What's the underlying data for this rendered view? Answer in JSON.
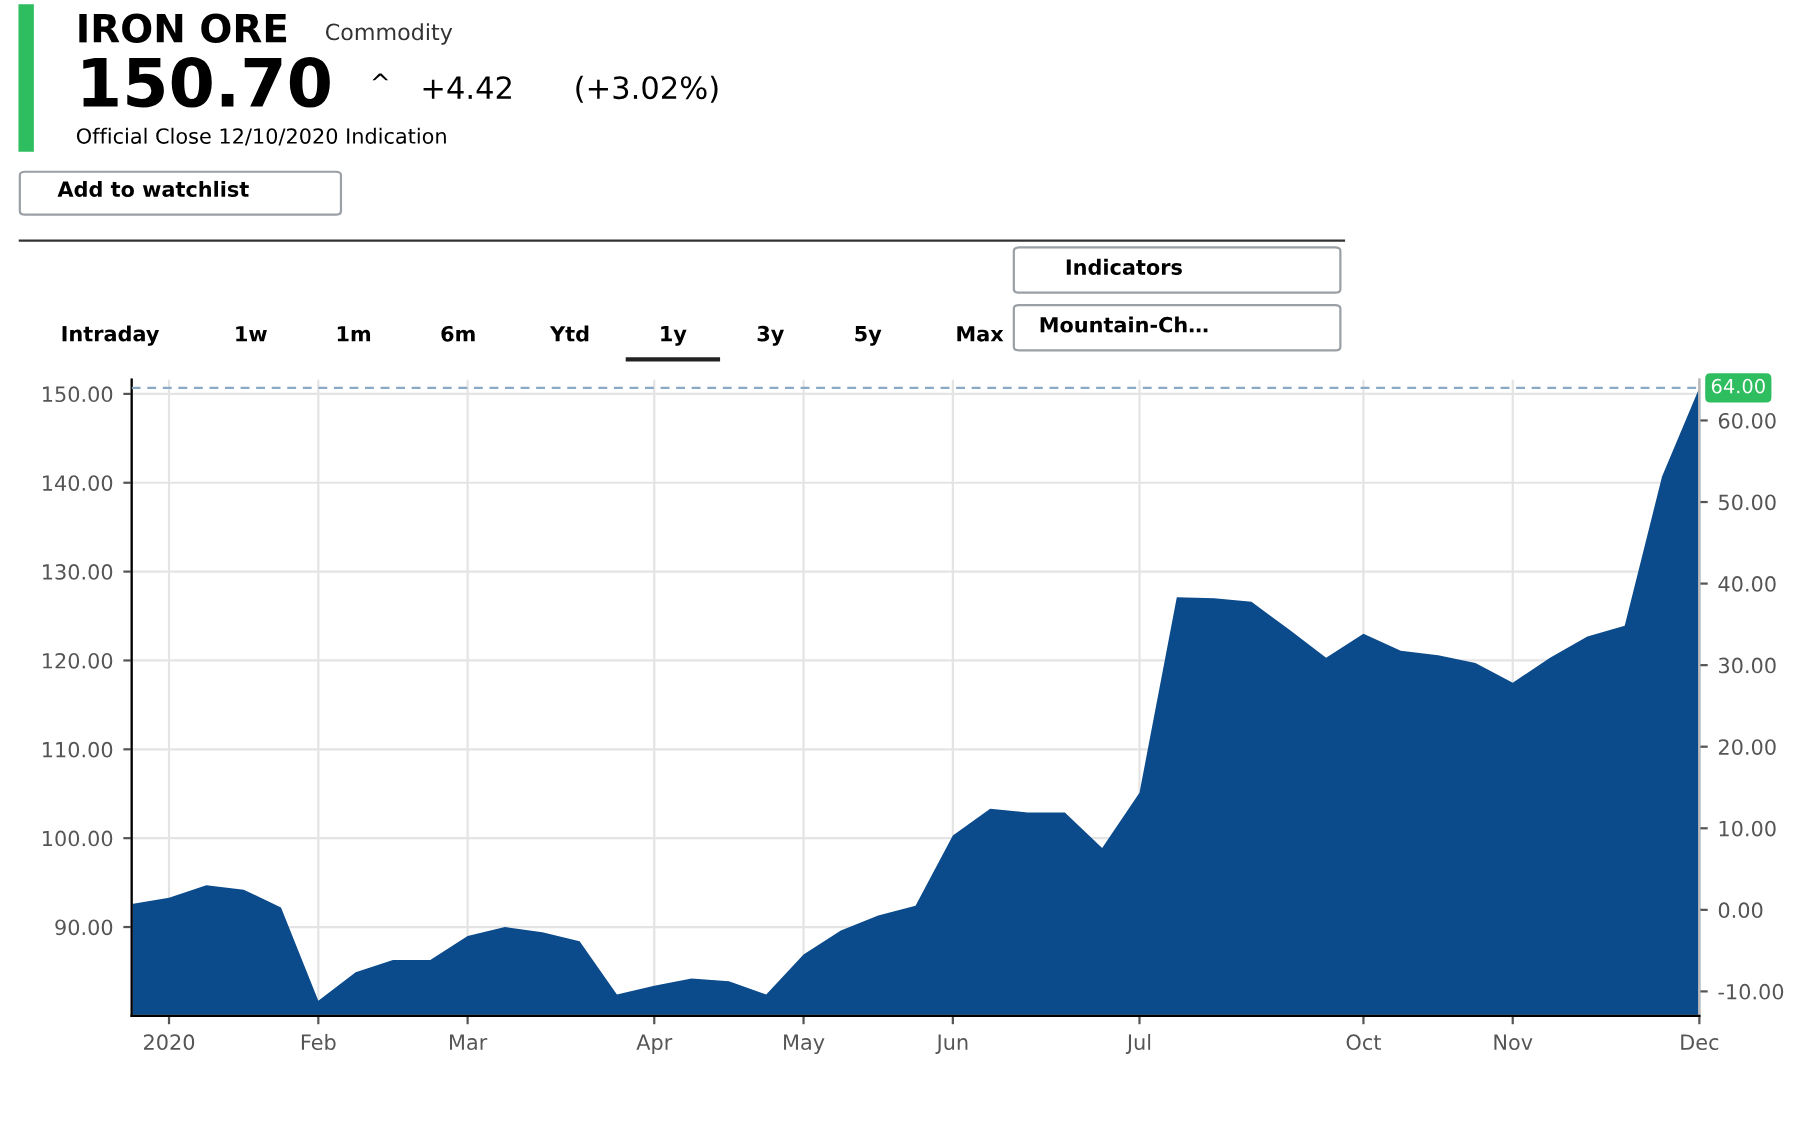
{
  "chart_data": {
    "type": "area",
    "title": "IRON ORE",
    "subtitle": "Commodity",
    "annotations": [
      "150.70",
      "^",
      "+4.42",
      "(+3.02%)",
      "Official Close 12/10/2020 Indication",
      "Add to watchlist",
      "Indicators",
      "Mountain-Ch…",
      "Intraday",
      "1w",
      "1m",
      "6m",
      "Ytd",
      "1y",
      "3y",
      "5y",
      "Max"
    ],
    "categories": [
      null,
      "2020",
      null,
      null,
      null,
      "Feb",
      null,
      null,
      null,
      "Mar",
      null,
      null,
      null,
      null,
      "Apr",
      null,
      null,
      null,
      "May",
      null,
      null,
      null,
      "Jun",
      null,
      null,
      null,
      null,
      "Jul",
      null,
      null,
      null,
      null,
      null,
      "Oct",
      null,
      null,
      null,
      "Nov",
      null,
      null,
      null,
      null,
      "Dec"
    ],
    "series": [
      {
        "color": "#0b4a8b",
        "values": [
          92.6,
          93.3,
          94.7,
          94.2,
          92.2,
          81.7,
          84.9,
          86.3,
          86.3,
          89.0,
          90.0,
          89.4,
          88.4,
          82.4,
          83.4,
          84.2,
          83.9,
          82.4,
          86.9,
          89.6,
          91.3,
          92.4,
          100.3,
          103.3,
          102.9,
          102.9,
          98.9,
          105.1,
          127.1,
          127.0,
          126.6,
          123.5,
          120.3,
          123.0,
          121.1,
          120.6,
          119.7,
          117.5,
          120.3,
          122.7,
          123.9,
          140.7,
          150.7
        ]
      }
    ],
    "ylim": [
      80,
      151.6
    ],
    "yticks": [
      {
        "value": 90,
        "label": "90.00"
      },
      {
        "value": 100,
        "label": "100.00"
      },
      {
        "value": 110,
        "label": "110.00"
      },
      {
        "value": 120,
        "label": "120.00"
      },
      {
        "value": 130,
        "label": "130.00"
      },
      {
        "value": 140,
        "label": "140.00"
      },
      {
        "value": 150,
        "label": "150.00"
      }
    ],
    "y2lim": [
      -13,
      65
    ],
    "y2ticks": [
      {
        "value": -10,
        "label": "-10.00"
      },
      {
        "value": 0,
        "label": "0.00"
      },
      {
        "value": 10,
        "label": "10.00"
      },
      {
        "value": 20,
        "label": "20.00"
      },
      {
        "value": 30,
        "label": "30.00"
      },
      {
        "value": 40,
        "label": "40.00"
      },
      {
        "value": 50,
        "label": "50.00"
      },
      {
        "value": 60,
        "label": "60.00"
      }
    ],
    "ref_lines": [
      {
        "axis": "y2",
        "value": 64,
        "label": "64.00",
        "color": "#8aa9c6",
        "line_style": "dashed"
      }
    ],
    "grid": true
  }
}
